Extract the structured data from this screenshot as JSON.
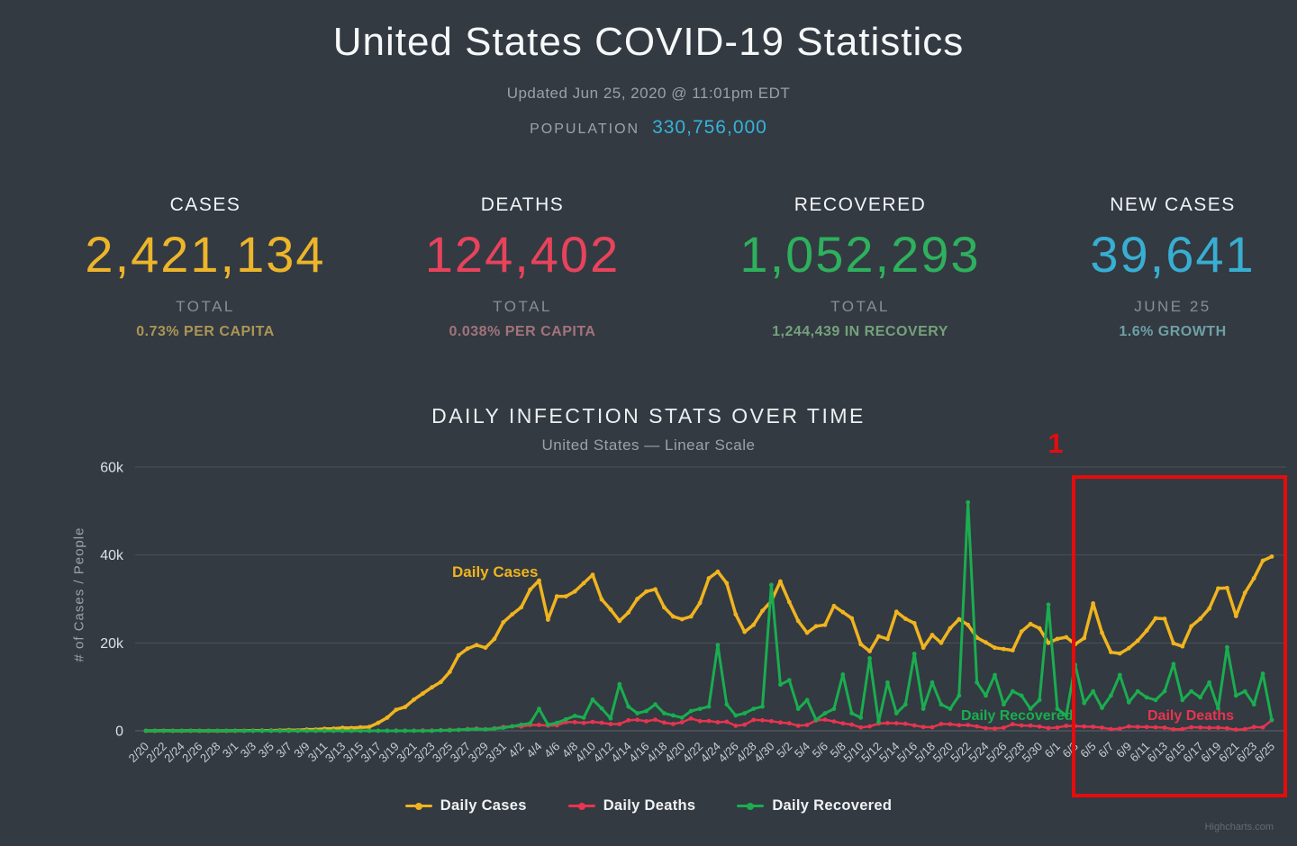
{
  "page": {
    "title": "United States COVID-19 Statistics",
    "updated": "Updated Jun 25, 2020 @ 11:01pm EDT",
    "population_label": "POPULATION",
    "population_value": "330,756,000"
  },
  "stats": [
    {
      "label": "CASES",
      "value": "2,421,134",
      "sublabel": "TOTAL",
      "note": "0.73% PER CAPITA",
      "color": "#edb52a",
      "note_color": "#ac9655"
    },
    {
      "label": "DEATHS",
      "value": "124,402",
      "sublabel": "TOTAL",
      "note": "0.038% PER CAPITA",
      "color": "#e8435c",
      "note_color": "#a3737c"
    },
    {
      "label": "RECOVERED",
      "value": "1,052,293",
      "sublabel": "TOTAL",
      "note": "1,244,439 IN RECOVERY",
      "color": "#2eb05c",
      "note_color": "#75a17c"
    },
    {
      "label": "NEW CASES",
      "value": "39,641",
      "sublabel": "JUNE 25",
      "note": "1.6% GROWTH",
      "color": "#38aed2",
      "note_color": "#6fa0a6"
    }
  ],
  "chart_data": {
    "type": "line",
    "title": "DAILY INFECTION STATS OVER TIME",
    "subtitle": "United States — Linear Scale",
    "ylabel": "# of Cases / People",
    "ylim": [
      0,
      60000
    ],
    "yticks": [
      {
        "v": 0,
        "label": "0"
      },
      {
        "v": 20000,
        "label": "20k"
      },
      {
        "v": 40000,
        "label": "40k"
      },
      {
        "v": 60000,
        "label": "60k"
      }
    ],
    "grid": true,
    "legend_position": "bottom",
    "x_tick_every": 2,
    "dates": [
      "2/20",
      "2/21",
      "2/22",
      "2/23",
      "2/24",
      "2/25",
      "2/26",
      "2/27",
      "2/28",
      "2/29",
      "3/1",
      "3/2",
      "3/3",
      "3/4",
      "3/5",
      "3/6",
      "3/7",
      "3/8",
      "3/9",
      "3/10",
      "3/11",
      "3/12",
      "3/13",
      "3/14",
      "3/15",
      "3/16",
      "3/17",
      "3/18",
      "3/19",
      "3/20",
      "3/21",
      "3/22",
      "3/23",
      "3/24",
      "3/25",
      "3/26",
      "3/27",
      "3/28",
      "3/29",
      "3/30",
      "3/31",
      "4/1",
      "4/2",
      "4/3",
      "4/4",
      "4/5",
      "4/6",
      "4/7",
      "4/8",
      "4/9",
      "4/10",
      "4/11",
      "4/12",
      "4/13",
      "4/14",
      "4/15",
      "4/16",
      "4/17",
      "4/18",
      "4/19",
      "4/20",
      "4/21",
      "4/22",
      "4/23",
      "4/24",
      "4/25",
      "4/26",
      "4/27",
      "4/28",
      "4/29",
      "4/30",
      "5/1",
      "5/2",
      "5/3",
      "5/4",
      "5/5",
      "5/6",
      "5/7",
      "5/8",
      "5/9",
      "5/10",
      "5/11",
      "5/12",
      "5/13",
      "5/14",
      "5/15",
      "5/16",
      "5/17",
      "5/18",
      "5/19",
      "5/20",
      "5/21",
      "5/22",
      "5/23",
      "5/24",
      "5/25",
      "5/26",
      "5/27",
      "5/28",
      "5/29",
      "5/30",
      "5/31",
      "6/1",
      "6/2",
      "6/3",
      "6/4",
      "6/5",
      "6/6",
      "6/7",
      "6/8",
      "6/9",
      "6/10",
      "6/11",
      "6/12",
      "6/13",
      "6/14",
      "6/15",
      "6/16",
      "6/17",
      "6/18",
      "6/19",
      "6/20",
      "6/21",
      "6/22",
      "6/23",
      "6/24",
      "6/25"
    ],
    "series": [
      {
        "name": "Daily Cases",
        "color": "#f0b41e",
        "values": [
          0,
          5,
          20,
          0,
          0,
          20,
          10,
          5,
          5,
          10,
          25,
          20,
          35,
          70,
          70,
          110,
          165,
          120,
          290,
          280,
          460,
          500,
          680,
          640,
          770,
          890,
          1800,
          3000,
          4800,
          5400,
          7100,
          8500,
          9900,
          11100,
          13400,
          17200,
          18700,
          19500,
          18900,
          20900,
          24700,
          26500,
          28100,
          32100,
          34200,
          25300,
          30600,
          30600,
          31700,
          33600,
          35500,
          29900,
          27600,
          25000,
          26900,
          30000,
          31700,
          32200,
          28100,
          26000,
          25400,
          26000,
          29100,
          34700,
          36200,
          33600,
          26500,
          22500,
          24100,
          27300,
          29500,
          34000,
          29300,
          25000,
          22300,
          23800,
          24100,
          28400,
          27000,
          25600,
          19700,
          18100,
          21500,
          20900,
          27100,
          25500,
          24500,
          18900,
          21800,
          20000,
          23300,
          25400,
          24100,
          21200,
          20100,
          18900,
          18600,
          18300,
          22600,
          24300,
          23300,
          20000,
          20900,
          21300,
          19700,
          21100,
          29000,
          22300,
          17900,
          17600,
          18800,
          20500,
          22800,
          25600,
          25500,
          19900,
          19200,
          23800,
          25500,
          27800,
          32400,
          32500,
          26100,
          31400,
          34700,
          38700,
          39641
        ]
      },
      {
        "name": "Daily Deaths",
        "color": "#e8344f",
        "values": [
          0,
          0,
          0,
          0,
          0,
          0,
          0,
          0,
          0,
          0,
          0,
          0,
          5,
          5,
          5,
          5,
          5,
          5,
          5,
          5,
          10,
          10,
          10,
          15,
          20,
          25,
          25,
          40,
          55,
          50,
          45,
          110,
          80,
          140,
          225,
          245,
          410,
          525,
          365,
          575,
          910,
          1050,
          970,
          1320,
          1330,
          1165,
          1255,
          1970,
          1975,
          1785,
          2035,
          1830,
          1530,
          1535,
          2405,
          2495,
          2175,
          2535,
          1865,
          1560,
          1940,
          2805,
          2205,
          2230,
          1955,
          2065,
          1155,
          1385,
          2470,
          2390,
          2200,
          1885,
          1690,
          1155,
          1325,
          2350,
          2530,
          2130,
          1685,
          1420,
          755,
          1010,
          1630,
          1770,
          1715,
          1595,
          1220,
          865,
          810,
          1550,
          1520,
          1265,
          1305,
          1005,
          590,
          505,
          695,
          1505,
          1200,
          1195,
          960,
          605,
          730,
          1135,
          1085,
          975,
          920,
          710,
          375,
          500,
          985,
          905,
          860,
          800,
          710,
          330,
          380,
          825,
          755,
          685,
          710,
          580,
          270,
          360,
          850,
          770,
          2425
        ]
      },
      {
        "name": "Daily Recovered",
        "color": "#1aad4f",
        "values": [
          0,
          0,
          0,
          0,
          0,
          0,
          0,
          0,
          0,
          0,
          0,
          0,
          0,
          0,
          0,
          0,
          0,
          0,
          0,
          0,
          0,
          0,
          0,
          0,
          0,
          0,
          0,
          0,
          0,
          0,
          0,
          0,
          0,
          100,
          100,
          200,
          300,
          400,
          300,
          500,
          700,
          1000,
          1400,
          1700,
          5000,
          1400,
          1800,
          2600,
          3400,
          3000,
          7100,
          5100,
          2800,
          10600,
          5500,
          4000,
          4500,
          6000,
          4000,
          3500,
          3000,
          4500,
          5000,
          5500,
          19500,
          6000,
          3500,
          4000,
          5000,
          5500,
          33200,
          10500,
          11500,
          5000,
          7000,
          2500,
          4000,
          5000,
          12800,
          4000,
          3000,
          16500,
          2000,
          11000,
          4000,
          6000,
          17500,
          5000,
          11000,
          6000,
          5000,
          8000,
          52000,
          11000,
          8000,
          12700,
          6000,
          9000,
          8000,
          5000,
          7000,
          28700,
          5000,
          3500,
          15000,
          6300,
          9000,
          5200,
          8000,
          12700,
          6500,
          9000,
          7600,
          7000,
          9000,
          15200,
          7000,
          9000,
          7600,
          11000,
          5100,
          19000,
          8000,
          9000,
          6000,
          13000,
          2500
        ]
      }
    ],
    "annotation": {
      "label": "1",
      "color": "#e60c0c",
      "x_start": "6/3",
      "x_end": "6/25"
    },
    "credit": "Highcharts.com"
  }
}
